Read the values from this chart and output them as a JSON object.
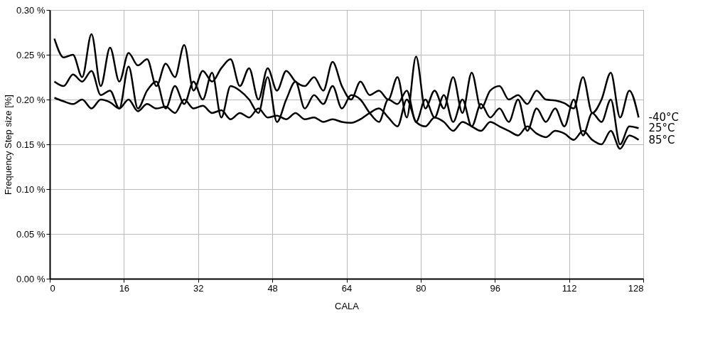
{
  "chart_data": {
    "type": "line",
    "xlabel": "CALA",
    "ylabel": "Frequency Step size [%]",
    "xlim": [
      0,
      128
    ],
    "xticks": [
      0,
      16,
      32,
      48,
      64,
      80,
      96,
      112,
      128
    ],
    "ylim": [
      0,
      0.3
    ],
    "yticks": [
      {
        "value": 0,
        "label": "0.00 %"
      },
      {
        "value": 0.05,
        "label": "0.05 %"
      },
      {
        "value": 0.1,
        "label": "0.10 %"
      },
      {
        "value": 0.15,
        "label": "0.15 %"
      },
      {
        "value": 0.2,
        "label": "0.20 %"
      },
      {
        "value": 0.25,
        "label": "0.25 %"
      },
      {
        "value": 0.3,
        "label": "0.30 %"
      }
    ],
    "grid": true,
    "legend": false,
    "marker": "none",
    "line_style": "solid",
    "x": [
      1,
      3,
      5,
      7,
      9,
      11,
      13,
      15,
      17,
      19,
      21,
      23,
      25,
      27,
      29,
      31,
      33,
      35,
      37,
      39,
      41,
      43,
      45,
      47,
      49,
      51,
      53,
      55,
      57,
      59,
      61,
      63,
      65,
      67,
      69,
      71,
      73,
      75,
      77,
      79,
      81,
      83,
      85,
      87,
      89,
      91,
      93,
      95,
      97,
      99,
      101,
      103,
      105,
      107,
      109,
      111,
      113,
      115,
      117,
      119,
      121,
      123,
      125,
      127
    ],
    "series": [
      {
        "name": "-40°C",
        "color": "#000000",
        "values": [
          0.268,
          0.247,
          0.25,
          0.225,
          0.273,
          0.215,
          0.258,
          0.22,
          0.252,
          0.238,
          0.245,
          0.215,
          0.24,
          0.225,
          0.261,
          0.21,
          0.232,
          0.22,
          0.235,
          0.245,
          0.215,
          0.235,
          0.2,
          0.235,
          0.21,
          0.232,
          0.22,
          0.215,
          0.225,
          0.21,
          0.242,
          0.215,
          0.2,
          0.22,
          0.205,
          0.21,
          0.2,
          0.225,
          0.18,
          0.248,
          0.19,
          0.21,
          0.19,
          0.225,
          0.185,
          0.23,
          0.19,
          0.21,
          0.215,
          0.2,
          0.205,
          0.195,
          0.21,
          0.2,
          0.199,
          0.196,
          0.19,
          0.225,
          0.185,
          0.2,
          0.23,
          0.18,
          0.21,
          0.18
        ]
      },
      {
        "name": "25°C",
        "color": "#000000",
        "values": [
          0.22,
          0.215,
          0.228,
          0.22,
          0.232,
          0.205,
          0.21,
          0.19,
          0.237,
          0.19,
          0.21,
          0.22,
          0.19,
          0.215,
          0.195,
          0.22,
          0.2,
          0.23,
          0.18,
          0.215,
          0.21,
          0.2,
          0.185,
          0.225,
          0.175,
          0.2,
          0.22,
          0.19,
          0.205,
          0.195,
          0.215,
          0.19,
          0.205,
          0.2,
          0.185,
          0.175,
          0.2,
          0.195,
          0.21,
          0.175,
          0.2,
          0.18,
          0.205,
          0.175,
          0.2,
          0.17,
          0.195,
          0.18,
          0.19,
          0.175,
          0.2,
          0.165,
          0.19,
          0.175,
          0.19,
          0.17,
          0.2,
          0.16,
          0.185,
          0.175,
          0.2,
          0.15,
          0.17,
          0.168
        ]
      },
      {
        "name": "85°C",
        "color": "#000000",
        "values": [
          0.202,
          0.198,
          0.195,
          0.2,
          0.19,
          0.2,
          0.197,
          0.19,
          0.2,
          0.187,
          0.195,
          0.19,
          0.192,
          0.185,
          0.2,
          0.19,
          0.193,
          0.185,
          0.188,
          0.178,
          0.185,
          0.18,
          0.19,
          0.18,
          0.182,
          0.178,
          0.185,
          0.178,
          0.18,
          0.175,
          0.178,
          0.175,
          0.174,
          0.178,
          0.185,
          0.19,
          0.18,
          0.17,
          0.2,
          0.175,
          0.17,
          0.18,
          0.175,
          0.165,
          0.175,
          0.17,
          0.165,
          0.175,
          0.17,
          0.165,
          0.16,
          0.17,
          0.162,
          0.158,
          0.165,
          0.162,
          0.155,
          0.165,
          0.155,
          0.15,
          0.165,
          0.145,
          0.16,
          0.155
        ]
      }
    ]
  }
}
